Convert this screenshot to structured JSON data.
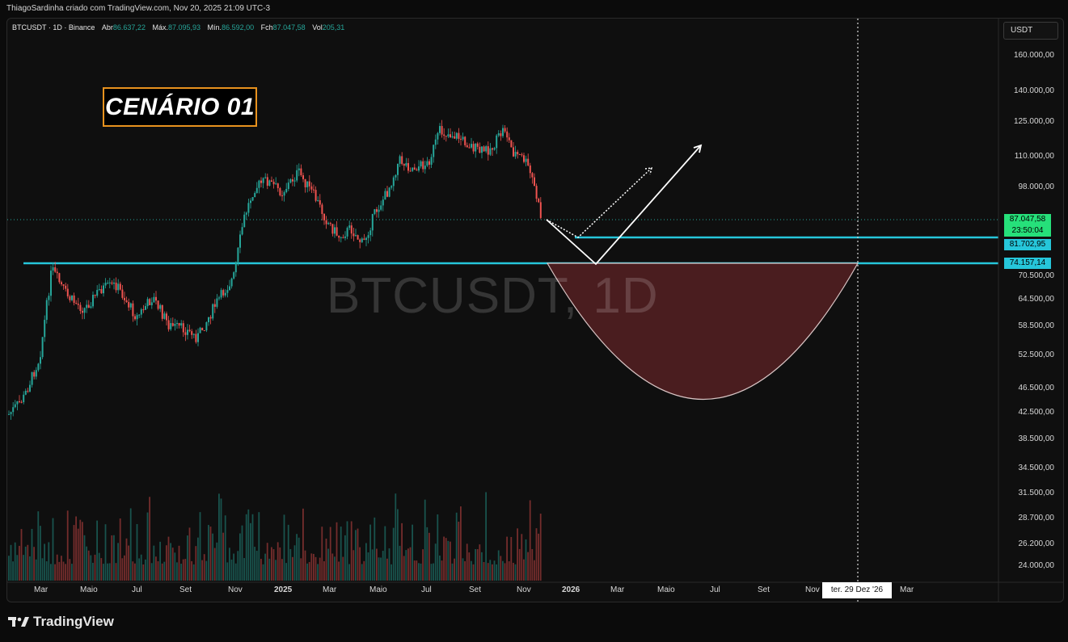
{
  "header": {
    "attribution": "ThiagoSardinha criado com TradingView.com, Nov 20, 2025 21:09 UTC-3"
  },
  "legend": {
    "symbol": "BTCUSDT · 1D · Binance",
    "open_label": "Abr",
    "open": "86.637,22",
    "high_label": "Máx.",
    "high": "87.095,93",
    "low_label": "Mín.",
    "low": "86.592,00",
    "close_label": "Fch",
    "close": "87.047,58",
    "vol_label": "Vol",
    "vol": "205,31"
  },
  "annotation": {
    "scenario": "CENÁRIO 01"
  },
  "watermark": "BTCUSDT, 1D",
  "currency_button": "USDT",
  "price_axis": {
    "labels": [
      "160.000,00",
      "140.000,00",
      "125.000,00",
      "110.000,00",
      "98.000,00",
      "70.500,00",
      "64.500,00",
      "58.500,00",
      "52.500,00",
      "46.500,00",
      "42.500,00",
      "38.500,00",
      "34.500,00",
      "31.500,00",
      "28.700,00",
      "26.200,00",
      "24.000,00"
    ]
  },
  "price_tags": {
    "last_price": "87.047,58",
    "countdown": "23:50:04",
    "level_upper": "81.702,95",
    "level_lower": "74.157,14"
  },
  "time_axis": {
    "labels": [
      "Mar",
      "Maio",
      "Jul",
      "Set",
      "Nov",
      "2025",
      "Mar",
      "Maio",
      "Jul",
      "Set",
      "Nov",
      "2026",
      "Mar",
      "Maio",
      "Jul",
      "Set",
      "Nov",
      "Mar"
    ],
    "crosshair_date": "ter. 29 Dez '26"
  },
  "colors": {
    "up": "#26a69a",
    "down": "#ef5350",
    "level_line": "#26c6da",
    "last_price_tag": "#26e07a",
    "level_tag": "#26c6da",
    "bowl_fill": "#4a1d1f",
    "scenario_border": "#e8921e"
  },
  "brand": "TradingView"
}
